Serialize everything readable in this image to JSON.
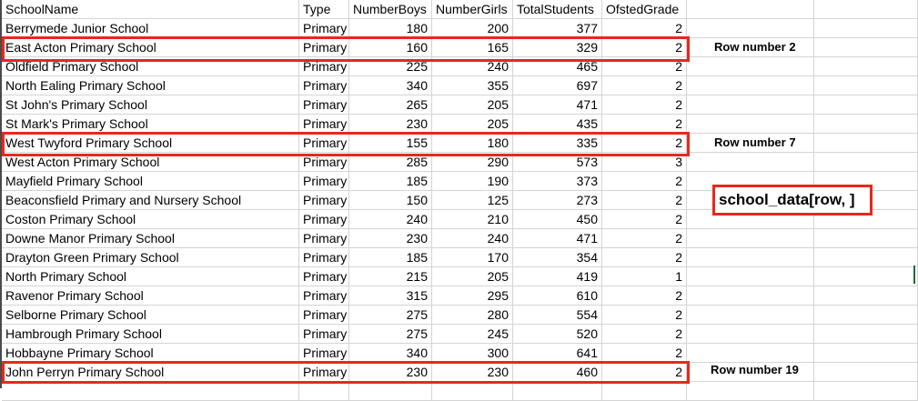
{
  "headers": [
    "SchoolName",
    "Type",
    "NumberBoys",
    "NumberGirls",
    "TotalStudents",
    "OfstedGrade"
  ],
  "rows": [
    [
      "Berrymede Junior School",
      "Primary",
      "180",
      "200",
      "377",
      "2"
    ],
    [
      "East Acton Primary School",
      "Primary",
      "160",
      "165",
      "329",
      "2"
    ],
    [
      "Oldfield Primary School",
      "Primary",
      "225",
      "240",
      "465",
      "2"
    ],
    [
      "North Ealing Primary School",
      "Primary",
      "340",
      "355",
      "697",
      "2"
    ],
    [
      "St John's Primary School",
      "Primary",
      "265",
      "205",
      "471",
      "2"
    ],
    [
      "St Mark's Primary School",
      "Primary",
      "230",
      "205",
      "435",
      "2"
    ],
    [
      "West Twyford Primary School",
      "Primary",
      "155",
      "180",
      "335",
      "2"
    ],
    [
      "West Acton Primary School",
      "Primary",
      "285",
      "290",
      "573",
      "3"
    ],
    [
      "Mayfield Primary School",
      "Primary",
      "185",
      "190",
      "373",
      "2"
    ],
    [
      "Beaconsfield Primary and Nursery School",
      "Primary",
      "150",
      "125",
      "273",
      "2"
    ],
    [
      "Coston Primary School",
      "Primary",
      "240",
      "210",
      "450",
      "2"
    ],
    [
      "Downe Manor Primary School",
      "Primary",
      "230",
      "240",
      "471",
      "2"
    ],
    [
      "Drayton Green Primary School",
      "Primary",
      "185",
      "170",
      "354",
      "2"
    ],
    [
      "North Primary School",
      "Primary",
      "215",
      "205",
      "419",
      "1"
    ],
    [
      "Ravenor Primary School",
      "Primary",
      "315",
      "295",
      "610",
      "2"
    ],
    [
      "Selborne Primary School",
      "Primary",
      "275",
      "280",
      "554",
      "2"
    ],
    [
      "Hambrough Primary School",
      "Primary",
      "275",
      "245",
      "520",
      "2"
    ],
    [
      "Hobbayne Primary School",
      "Primary",
      "340",
      "300",
      "641",
      "2"
    ],
    [
      "John Perryn Primary School",
      "Primary",
      "230",
      "230",
      "460",
      "2"
    ]
  ],
  "annotations": {
    "row2": "Row number 2",
    "row7": "Row number 7",
    "row19": "Row number 19",
    "code": "school_data[row, ]"
  },
  "colors": {
    "highlight": "#e8281c",
    "gridline": "#d4d4d4"
  }
}
